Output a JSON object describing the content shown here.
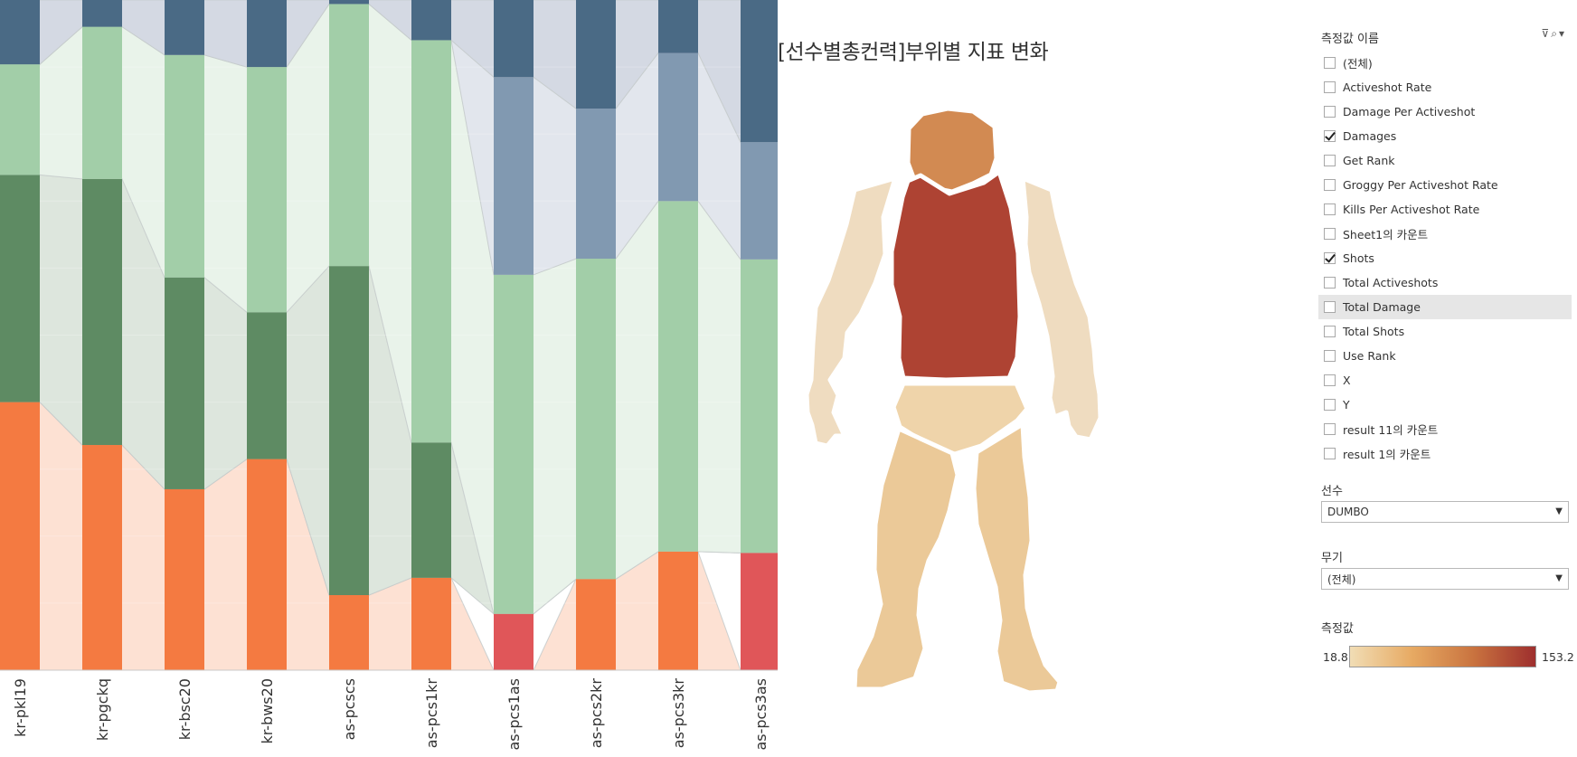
{
  "chart_data": {
    "type": "bar",
    "stacked": "percent",
    "categories": [
      "kr-pkl19",
      "kr-pgckq",
      "kr-bsc20",
      "kr-bws20",
      "as-pcscs",
      "as-pcs1kr",
      "as-pcs1as",
      "as-pcs2kr",
      "as-pcs3kr",
      "as-pcs3as"
    ],
    "series": [
      {
        "color": "#f47a41",
        "band_color": "#fde1d3",
        "values": [
          40,
          33.6,
          27,
          31.5,
          11.2,
          13.8,
          0,
          13.6,
          17.7,
          0
        ]
      },
      {
        "color": "#e05659",
        "band_color": "#ffffff",
        "values": [
          0,
          0,
          0,
          0,
          0,
          0,
          8.4,
          0,
          0,
          17.5
        ]
      },
      {
        "color": "#5e8b63",
        "band_color": "#dde6dd",
        "values": [
          33.9,
          39.7,
          31.6,
          21.9,
          49.1,
          20.2,
          0,
          0,
          0,
          0
        ]
      },
      {
        "color": "#a2cea8",
        "band_color": "#e9f3ea",
        "values": [
          16.5,
          22.7,
          33.2,
          36.6,
          39.1,
          60.1,
          50.6,
          47.8,
          52.3,
          43.8
        ]
      },
      {
        "color": "#8199b1",
        "band_color": "#e2e6ed",
        "values": [
          0,
          0,
          0,
          0,
          0,
          0,
          29.5,
          22.4,
          22.1,
          17.5
        ]
      },
      {
        "color": "#4a6a85",
        "band_color": "#d4d9e3",
        "values": [
          9.6,
          4,
          8.2,
          10,
          0.6,
          6,
          11.5,
          16.2,
          7.9,
          21.2
        ]
      }
    ]
  },
  "body_title": "[선수별총컨력]부위별 지표 변화",
  "body_parts": [
    {
      "part": "head",
      "value": 95
    },
    {
      "part": "torso",
      "value": 153.2
    },
    {
      "part": "pelvis",
      "value": 32
    },
    {
      "part": "legs",
      "value": 30
    },
    {
      "part": "arms",
      "value": 18.8
    }
  ],
  "panel": {
    "measure_names_title": "측정값 이름",
    "measure_items": [
      {
        "label": "(전체)",
        "checked": false
      },
      {
        "label": "Activeshot Rate",
        "checked": false
      },
      {
        "label": "Damage Per Activeshot",
        "checked": false
      },
      {
        "label": "Damages",
        "checked": true
      },
      {
        "label": "Get Rank",
        "checked": false
      },
      {
        "label": "Groggy Per Activeshot Rate",
        "checked": false
      },
      {
        "label": "Kills Per Activeshot Rate",
        "checked": false
      },
      {
        "label": "Sheet1의 카운트",
        "checked": false
      },
      {
        "label": "Shots",
        "checked": true
      },
      {
        "label": "Total Activeshots",
        "checked": false
      },
      {
        "label": "Total Damage",
        "checked": false
      },
      {
        "label": "Total Shots",
        "checked": false
      },
      {
        "label": "Use Rank",
        "checked": false
      },
      {
        "label": "X",
        "checked": false
      },
      {
        "label": "Y",
        "checked": false
      },
      {
        "label": "result 11의 카운트",
        "checked": false
      },
      {
        "label": "result 1의 카운트",
        "checked": false
      }
    ],
    "player_title": "선수",
    "player_value": "DUMBO",
    "weapon_title": "무기",
    "weapon_value": "(전체)",
    "legend_title": "측정값",
    "legend_min": "18.8",
    "legend_max": "153.2",
    "legend_colors": [
      "#f1ddb5",
      "#e7aa63",
      "#c9733f",
      "#9e2f2e"
    ]
  }
}
